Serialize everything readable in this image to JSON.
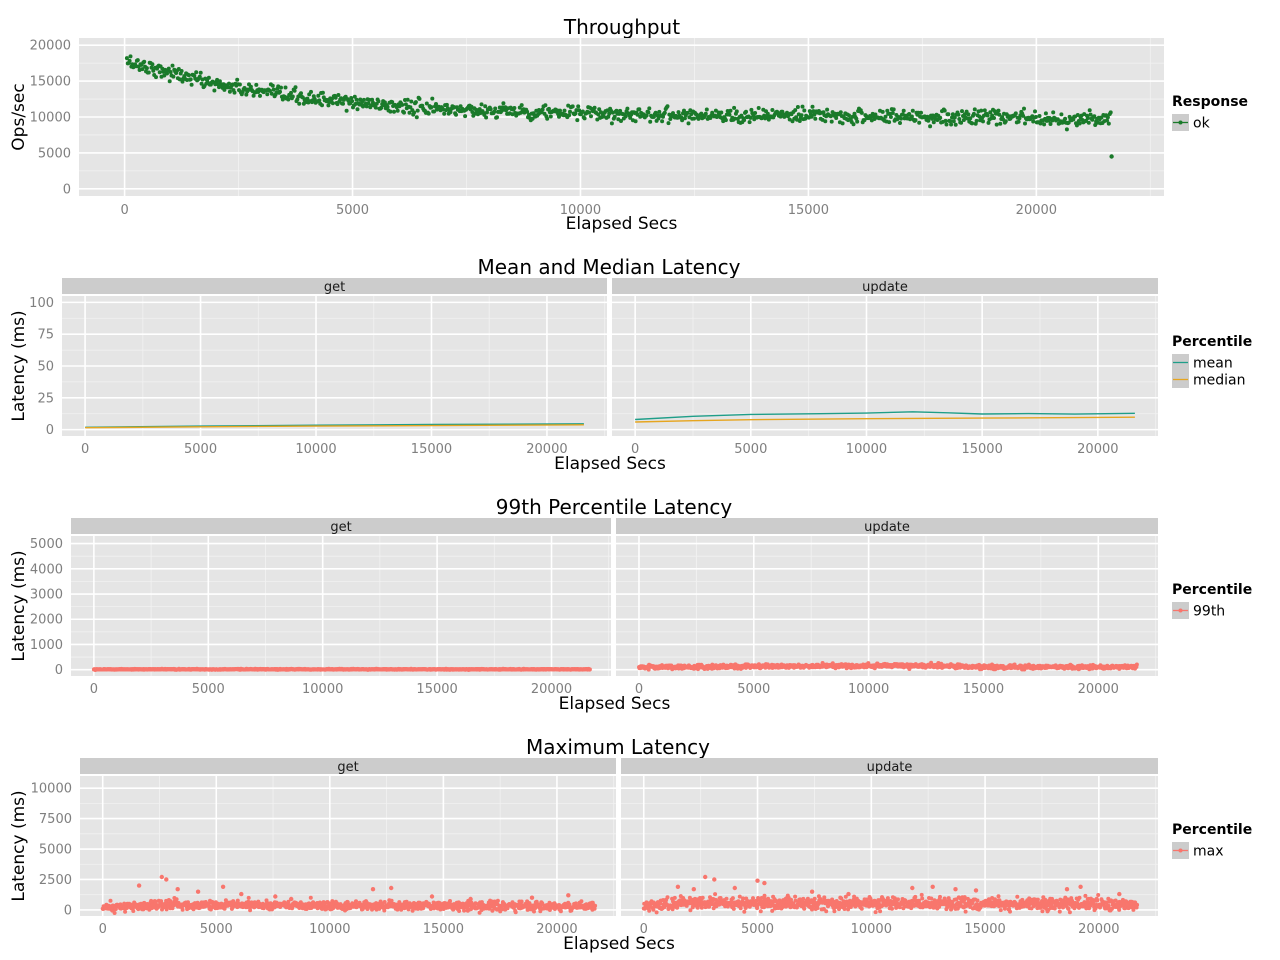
{
  "chart_data": [
    {
      "id": "throughput",
      "type": "scatter",
      "title": "Throughput",
      "xlabel": "Elapsed Secs",
      "ylabel": "Ops/sec",
      "xlim": [
        -1000,
        22800
      ],
      "ylim": [
        -1000,
        21000
      ],
      "xticks": [
        0,
        5000,
        10000,
        15000,
        20000
      ],
      "yticks": [
        0,
        5000,
        10000,
        15000,
        20000
      ],
      "grid": true,
      "legend": {
        "title": "Response",
        "position": "right",
        "entries": [
          {
            "label": "ok",
            "color": "#1a7a2a",
            "key": "point-line"
          }
        ]
      },
      "facets": [
        {
          "label": "",
          "series": [
            {
              "name": "ok",
              "color": "#1a7a2a",
              "trend": [
                [
                  0,
                  17800
                ],
                [
                  500,
                  17000
                ],
                [
                  1000,
                  16200
                ],
                [
                  2000,
                  14600
                ],
                [
                  3000,
                  13400
                ],
                [
                  4000,
                  12600
                ],
                [
                  5000,
                  12000
                ],
                [
                  6000,
                  11500
                ],
                [
                  7000,
                  11100
                ],
                [
                  8000,
                  10900
                ],
                [
                  9000,
                  10700
                ],
                [
                  10000,
                  10500
                ],
                [
                  12000,
                  10300
                ],
                [
                  14000,
                  10200
                ],
                [
                  16000,
                  10100
                ],
                [
                  18000,
                  10000
                ],
                [
                  20000,
                  9900
                ],
                [
                  21600,
                  9600
                ]
              ],
              "n": 1080,
              "x_range": [
                50,
                21650
              ],
              "noise": 500,
              "outliers": [
                [
                  21650,
                  4500
                ]
              ]
            }
          ]
        }
      ]
    },
    {
      "id": "mean-median",
      "type": "line",
      "title": "Mean and Median Latency",
      "xlabel": "Elapsed Secs",
      "ylabel": "Latency (ms)",
      "xlim": [
        -1000,
        22600
      ],
      "ylim": [
        -5,
        105
      ],
      "xticks": [
        0,
        5000,
        10000,
        15000,
        20000
      ],
      "yticks": [
        0,
        25,
        50,
        75,
        100
      ],
      "grid": true,
      "legend": {
        "title": "Percentile",
        "position": "right",
        "entries": [
          {
            "label": "mean",
            "color": "#1f9e89",
            "key": "line"
          },
          {
            "label": "median",
            "color": "#e6a51f",
            "key": "line"
          }
        ]
      },
      "facets": [
        {
          "label": "get",
          "series": [
            {
              "name": "mean",
              "color": "#1f9e89",
              "values": [
                [
                  0,
                  1.8
                ],
                [
                  5000,
                  2.8
                ],
                [
                  10000,
                  3.5
                ],
                [
                  15000,
                  4.0
                ],
                [
                  21600,
                  4.6
                ]
              ]
            },
            {
              "name": "median",
              "color": "#e6a51f",
              "values": [
                [
                  0,
                  1.5
                ],
                [
                  5000,
                  2.2
                ],
                [
                  10000,
                  2.8
                ],
                [
                  15000,
                  3.2
                ],
                [
                  21600,
                  3.8
                ]
              ]
            }
          ]
        },
        {
          "label": "update",
          "series": [
            {
              "name": "mean",
              "color": "#1f9e89",
              "values": [
                [
                  0,
                  8.0
                ],
                [
                  2500,
                  10.5
                ],
                [
                  5000,
                  12.0
                ],
                [
                  8000,
                  12.5
                ],
                [
                  10000,
                  13.0
                ],
                [
                  12000,
                  14.0
                ],
                [
                  13500,
                  13.2
                ],
                [
                  15000,
                  12.3
                ],
                [
                  17000,
                  12.6
                ],
                [
                  19000,
                  12.2
                ],
                [
                  21600,
                  12.8
                ]
              ]
            },
            {
              "name": "median",
              "color": "#e6a51f",
              "values": [
                [
                  0,
                  6.0
                ],
                [
                  2500,
                  7.0
                ],
                [
                  5000,
                  7.8
                ],
                [
                  10000,
                  8.6
                ],
                [
                  15000,
                  9.1
                ],
                [
                  21600,
                  9.8
                ]
              ]
            }
          ]
        }
      ]
    },
    {
      "id": "p99",
      "type": "scatter",
      "title": "99th Percentile Latency",
      "xlabel": "Elapsed Secs",
      "ylabel": "Latency (ms)",
      "xlim": [
        -1000,
        22600
      ],
      "ylim": [
        -250,
        5300
      ],
      "xticks": [
        0,
        5000,
        10000,
        15000,
        20000
      ],
      "yticks": [
        0,
        1000,
        2000,
        3000,
        4000,
        5000
      ],
      "grid": true,
      "legend": {
        "title": "Percentile",
        "position": "right",
        "entries": [
          {
            "label": "99th",
            "color": "#f8766d",
            "key": "point-line"
          }
        ]
      },
      "facets": [
        {
          "label": "get",
          "series": [
            {
              "name": "99th",
              "color": "#f8766d",
              "trend": [
                [
                  0,
                  15
                ],
                [
                  21600,
                  15
                ]
              ],
              "n": 1080,
              "x_range": [
                0,
                21700
              ],
              "noise": 8,
              "outliers": []
            }
          ]
        },
        {
          "label": "update",
          "series": [
            {
              "name": "99th",
              "color": "#f8766d",
              "trend": [
                [
                  0,
                  100
                ],
                [
                  5000,
                  130
                ],
                [
                  10000,
                  150
                ],
                [
                  13000,
                  160
                ],
                [
                  15000,
                  100
                ],
                [
                  21600,
                  110
                ]
              ],
              "n": 1080,
              "x_range": [
                0,
                21700
              ],
              "noise": 40,
              "outliers": []
            }
          ]
        }
      ]
    },
    {
      "id": "max",
      "type": "scatter",
      "title": "Maximum Latency",
      "xlabel": "Elapsed Secs",
      "ylabel": "Latency (ms)",
      "xlim": [
        -1000,
        22600
      ],
      "ylim": [
        -500,
        11000
      ],
      "xticks": [
        0,
        5000,
        10000,
        15000,
        20000
      ],
      "yticks": [
        0,
        2500,
        5000,
        7500,
        10000
      ],
      "grid": true,
      "legend": {
        "title": "Percentile",
        "position": "right",
        "entries": [
          {
            "label": "max",
            "color": "#f8766d",
            "key": "point-line"
          }
        ]
      },
      "facets": [
        {
          "label": "get",
          "series": [
            {
              "name": "max",
              "color": "#f8766d",
              "trend": [
                [
                  0,
                  200
                ],
                [
                  1500,
                  300
                ],
                [
                  3000,
                  450
                ],
                [
                  5000,
                  400
                ],
                [
                  10000,
                  350
                ],
                [
                  15000,
                  330
                ],
                [
                  21600,
                  300
                ]
              ],
              "n": 1080,
              "x_range": [
                0,
                21700
              ],
              "noise": 180,
              "outliers": [
                [
                  1600,
                  2000
                ],
                [
                  2600,
                  2700
                ],
                [
                  2800,
                  2500
                ],
                [
                  3300,
                  1700
                ],
                [
                  4200,
                  1500
                ],
                [
                  5300,
                  1900
                ],
                [
                  6100,
                  1300
                ],
                [
                  7600,
                  1100
                ],
                [
                  8300,
                  900
                ],
                [
                  11900,
                  1700
                ],
                [
                  12700,
                  1800
                ],
                [
                  14500,
                  1100
                ],
                [
                  16200,
                  900
                ],
                [
                  18900,
                  1000
                ],
                [
                  20500,
                  1200
                ]
              ]
            }
          ]
        },
        {
          "label": "update",
          "series": [
            {
              "name": "max",
              "color": "#f8766d",
              "trend": [
                [
                  0,
                  300
                ],
                [
                  1500,
                  500
                ],
                [
                  3000,
                  600
                ],
                [
                  5000,
                  550
                ],
                [
                  10000,
                  500
                ],
                [
                  15000,
                  500
                ],
                [
                  21600,
                  450
                ]
              ],
              "n": 1080,
              "x_range": [
                0,
                21700
              ],
              "noise": 250,
              "outliers": [
                [
                  1500,
                  1900
                ],
                [
                  2200,
                  1700
                ],
                [
                  2700,
                  2700
                ],
                [
                  3100,
                  2500
                ],
                [
                  4000,
                  1800
                ],
                [
                  5000,
                  2400
                ],
                [
                  5300,
                  2200
                ],
                [
                  7400,
                  1500
                ],
                [
                  9000,
                  1300
                ],
                [
                  11800,
                  1800
                ],
                [
                  12700,
                  1900
                ],
                [
                  13700,
                  1700
                ],
                [
                  14600,
                  1600
                ],
                [
                  18600,
                  1700
                ],
                [
                  19200,
                  1900
                ],
                [
                  20900,
                  1300
                ]
              ]
            }
          ]
        }
      ]
    }
  ]
}
